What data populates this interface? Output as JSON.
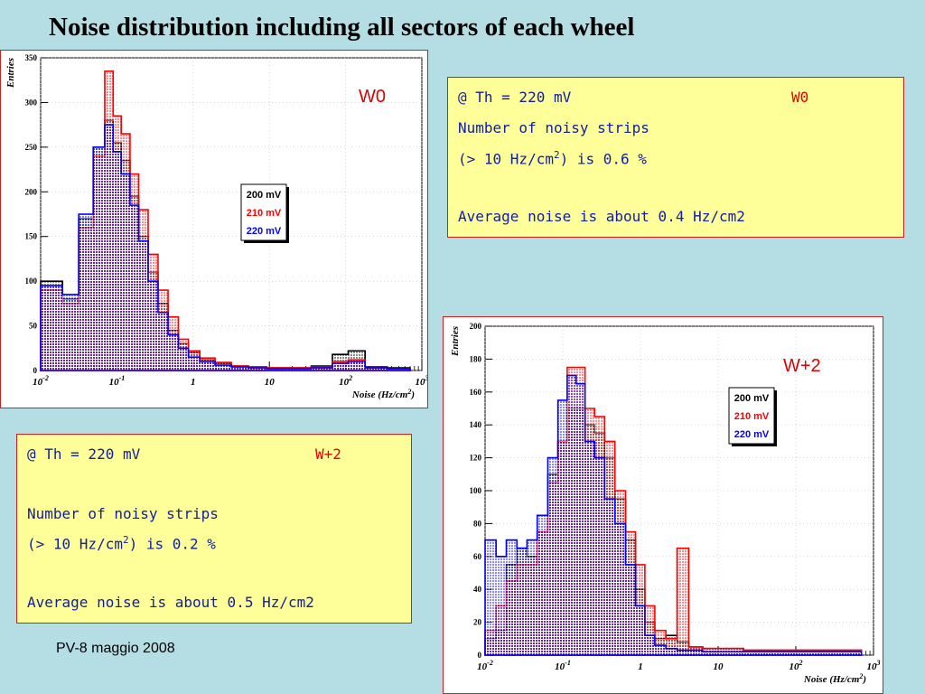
{
  "slide": {
    "title": "Noise distribution including all sectors of each wheel",
    "footer": "PV-8 maggio 2008"
  },
  "colors": {
    "background": "#b4dde4",
    "panel_border": "#d02020",
    "info_bg": "#ffff99",
    "info_text": "#1020a0",
    "wheel_label": "#e00000"
  },
  "box_w0": {
    "threshold": "@ Th = 220 mV",
    "wheel": "W0",
    "line1": "Number of noisy strips",
    "line2_pre": "(> 10 Hz/cm",
    "line2_sup": "2",
    "line2_post": ") is  0.6 %",
    "line3": "Average noise is about  0.4 Hz/cm2"
  },
  "box_w2": {
    "threshold": "@ Th = 220 mV",
    "wheel": "W+2",
    "line1": "Number  of noisy strips",
    "line2_pre": "(> 10 Hz/cm",
    "line2_sup": "2",
    "line2_post": ") is  0.2 %",
    "line3": "Average noise is about  0.5 Hz/cm2"
  },
  "chart_data": [
    {
      "type": "histogram",
      "wheel_label": "W0",
      "ylabel": "Entries",
      "xlabel": "Noise (Hz/cm2)",
      "x_scale": "log",
      "xlim": [
        0.01,
        1000
      ],
      "ylim": [
        0,
        350
      ],
      "y_ticks": [
        0,
        50,
        100,
        150,
        200,
        250,
        300,
        350
      ],
      "x_ticks": [
        {
          "v": 0.01,
          "b": "10",
          "e": "-2"
        },
        {
          "v": 0.1,
          "b": "10",
          "e": "-1"
        },
        {
          "v": 1,
          "b": "1",
          "e": ""
        },
        {
          "v": 10,
          "b": "10",
          "e": ""
        },
        {
          "v": 100,
          "b": "10",
          "e": "2"
        },
        {
          "v": 1000,
          "b": "10",
          "e": "3"
        }
      ],
      "legend": [
        "200 mV",
        "210 mV",
        "220 mV"
      ],
      "legend_colors": [
        "#000000",
        "#ff0000",
        "#0000ff"
      ],
      "series": [
        {
          "name": "200 mV",
          "color": "#000000",
          "x": [
            0.015,
            0.025,
            0.04,
            0.06,
            0.08,
            0.1,
            0.13,
            0.17,
            0.22,
            0.3,
            0.4,
            0.55,
            0.75,
            1,
            1.5,
            2.5,
            4,
            7,
            12,
            25,
            50,
            90,
            130,
            250,
            500
          ],
          "y": [
            100,
            80,
            170,
            250,
            280,
            255,
            235,
            195,
            150,
            110,
            75,
            45,
            30,
            20,
            12,
            8,
            5,
            4,
            3,
            3,
            5,
            18,
            22,
            4,
            3
          ]
        },
        {
          "name": "210 mV",
          "color": "#ff0000",
          "x": [
            0.015,
            0.025,
            0.04,
            0.06,
            0.08,
            0.1,
            0.13,
            0.17,
            0.22,
            0.3,
            0.4,
            0.55,
            0.75,
            1,
            1.5,
            2.5,
            4,
            7,
            12,
            25,
            50,
            90,
            130,
            250,
            500
          ],
          "y": [
            90,
            75,
            160,
            240,
            335,
            285,
            265,
            220,
            180,
            130,
            90,
            60,
            35,
            22,
            14,
            9,
            5,
            4,
            3,
            3,
            4,
            10,
            12,
            3,
            2
          ]
        },
        {
          "name": "220 mV",
          "color": "#0000ff",
          "x": [
            0.015,
            0.025,
            0.04,
            0.06,
            0.08,
            0.1,
            0.13,
            0.17,
            0.22,
            0.3,
            0.4,
            0.55,
            0.75,
            1,
            1.5,
            2.5,
            4,
            7,
            12,
            25,
            50,
            90,
            130,
            250,
            500
          ],
          "y": [
            95,
            85,
            175,
            250,
            275,
            245,
            220,
            185,
            145,
            100,
            65,
            40,
            25,
            15,
            10,
            6,
            4,
            3,
            2,
            2,
            3,
            8,
            10,
            3,
            2
          ]
        }
      ]
    },
    {
      "type": "histogram",
      "wheel_label": "W+2",
      "ylabel": "Entries",
      "xlabel": "Noise (Hz/cm2)",
      "x_scale": "log",
      "xlim": [
        0.01,
        1000
      ],
      "ylim": [
        0,
        200
      ],
      "y_ticks": [
        0,
        20,
        40,
        60,
        80,
        100,
        120,
        140,
        160,
        180,
        200
      ],
      "x_ticks": [
        {
          "v": 0.01,
          "b": "10",
          "e": "-2"
        },
        {
          "v": 0.1,
          "b": "10",
          "e": "-1"
        },
        {
          "v": 1,
          "b": "1",
          "e": ""
        },
        {
          "v": 10,
          "b": "10",
          "e": ""
        },
        {
          "v": 100,
          "b": "10",
          "e": "2"
        },
        {
          "v": 1000,
          "b": "10",
          "e": "3"
        }
      ],
      "legend": [
        "200 mV",
        "210 mV",
        "220 mV"
      ],
      "legend_colors": [
        "#000000",
        "#ff0000",
        "#0000ff"
      ],
      "series": [
        {
          "name": "200 mV",
          "color": "#000000",
          "x": [
            0.012,
            0.016,
            0.022,
            0.03,
            0.04,
            0.055,
            0.075,
            0.1,
            0.13,
            0.17,
            0.22,
            0.3,
            0.4,
            0.55,
            0.75,
            1,
            1.3,
            1.8,
            2.5,
            3.5,
            5,
            8,
            15,
            30,
            80,
            200,
            500
          ],
          "y": [
            10,
            15,
            55,
            65,
            60,
            75,
            110,
            130,
            150,
            150,
            140,
            135,
            120,
            95,
            70,
            40,
            20,
            10,
            12,
            8,
            5,
            4,
            4,
            3,
            3,
            3,
            3
          ]
        },
        {
          "name": "210 mV",
          "color": "#ff0000",
          "x": [
            0.012,
            0.016,
            0.022,
            0.03,
            0.04,
            0.055,
            0.075,
            0.1,
            0.13,
            0.17,
            0.22,
            0.3,
            0.4,
            0.55,
            0.75,
            1,
            1.3,
            1.8,
            2.5,
            3.5,
            5,
            8,
            15,
            30,
            80,
            200,
            500
          ],
          "y": [
            15,
            30,
            45,
            55,
            55,
            75,
            105,
            130,
            175,
            175,
            150,
            145,
            130,
            100,
            75,
            55,
            30,
            15,
            10,
            65,
            5,
            4,
            4,
            3,
            3,
            3,
            3
          ]
        },
        {
          "name": "220 mV",
          "color": "#0000ff",
          "x": [
            0.012,
            0.016,
            0.022,
            0.03,
            0.04,
            0.055,
            0.075,
            0.1,
            0.13,
            0.17,
            0.22,
            0.3,
            0.4,
            0.55,
            0.75,
            1,
            1.3,
            1.8,
            2.5,
            3.5,
            5,
            8,
            15,
            30,
            80,
            200,
            500
          ],
          "y": [
            70,
            60,
            70,
            65,
            70,
            85,
            120,
            155,
            170,
            165,
            130,
            120,
            95,
            80,
            55,
            30,
            12,
            6,
            4,
            3,
            3,
            2,
            2,
            2,
            2,
            2,
            2
          ]
        }
      ]
    }
  ]
}
